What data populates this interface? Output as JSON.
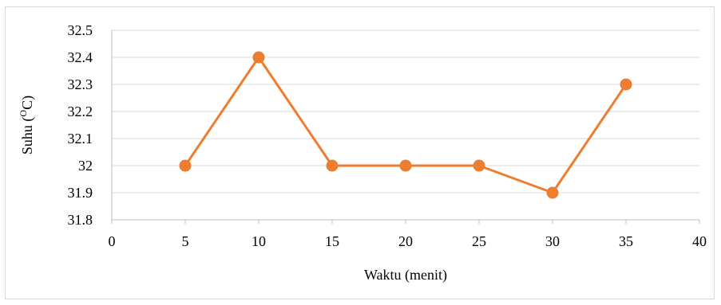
{
  "chart_data": {
    "type": "line",
    "title": "",
    "xlabel": "Waktu (menit)",
    "ylabel": "Suhu (",
    "ylabel_sup": "O",
    "ylabel_suffix": "C)",
    "xlim": [
      0,
      40
    ],
    "ylim": [
      31.8,
      32.5
    ],
    "x_ticks": [
      0,
      5,
      10,
      15,
      20,
      25,
      30,
      35,
      40
    ],
    "x_tick_labels": [
      "0",
      "5",
      "10",
      "15",
      "20",
      "25",
      "30",
      "35",
      "40"
    ],
    "y_ticks": [
      31.8,
      31.9,
      32.0,
      32.1,
      32.2,
      32.3,
      32.4,
      32.5
    ],
    "y_tick_labels": [
      "31.8",
      "31.9",
      "32",
      "32.1",
      "32.2",
      "32.3",
      "32.4",
      "32.5"
    ],
    "grid": "horizontal",
    "legend": "none",
    "series": [
      {
        "x": [
          5,
          10,
          15,
          20,
          25,
          30,
          35
        ],
        "values": [
          32.0,
          32.4,
          32.0,
          32.0,
          32.0,
          31.9,
          32.3
        ],
        "color": "#ed7d31"
      }
    ]
  }
}
